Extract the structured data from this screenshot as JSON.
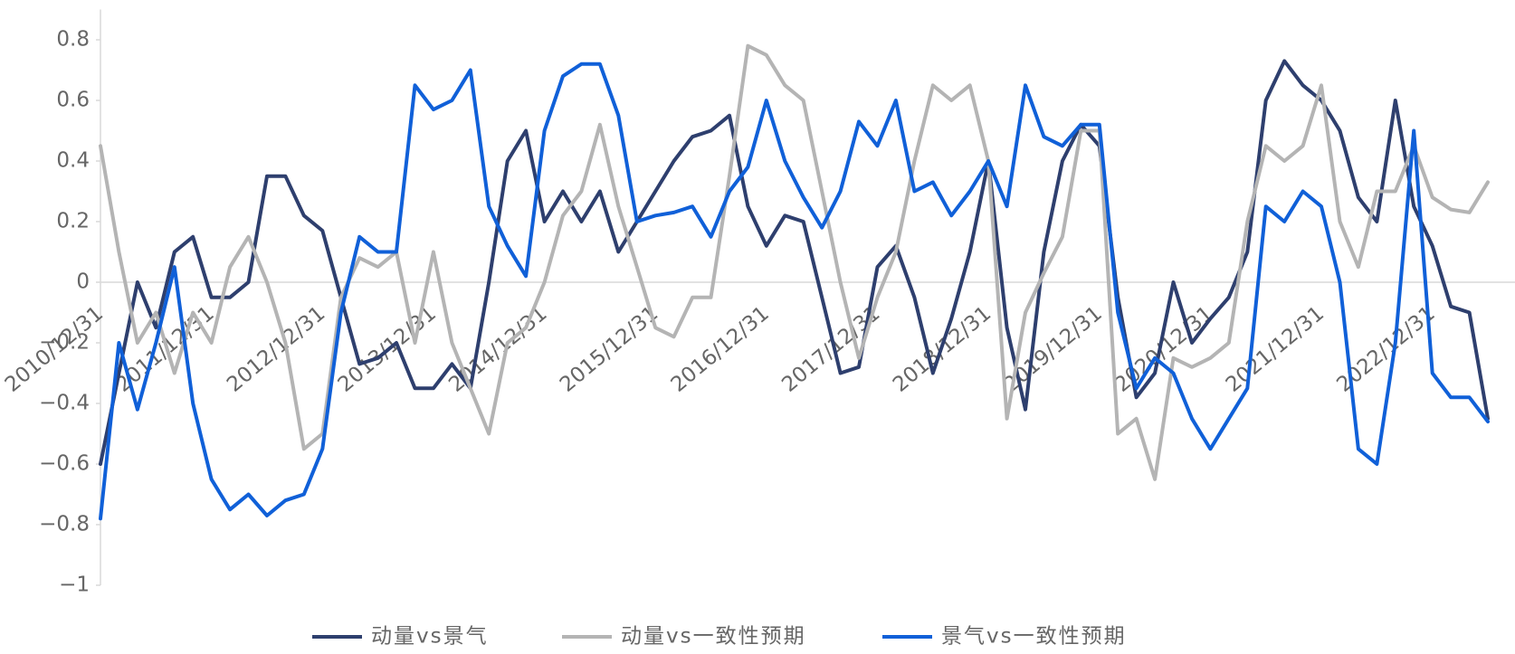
{
  "chart_data": {
    "type": "line",
    "categories": [
      "2010/12/31",
      null,
      null,
      null,
      null,
      null,
      "2011/12/31",
      null,
      null,
      null,
      null,
      null,
      "2012/12/31",
      null,
      null,
      null,
      null,
      null,
      "2013/12/31",
      null,
      null,
      null,
      null,
      null,
      "2014/12/31",
      null,
      null,
      null,
      null,
      null,
      "2015/12/31",
      null,
      null,
      null,
      null,
      null,
      "2016/12/31",
      null,
      null,
      null,
      null,
      null,
      "2017/12/31",
      null,
      null,
      null,
      null,
      null,
      "2018/12/31",
      null,
      null,
      null,
      null,
      null,
      "2019/12/31",
      null,
      null,
      null,
      null,
      null,
      "2020/12/31",
      null,
      null,
      null,
      null,
      null,
      "2021/12/31",
      null,
      null,
      null,
      null,
      null,
      "2022/12/31",
      null,
      null,
      null
    ],
    "series": [
      {
        "name": "动量vs景气",
        "color": "#2e3f6e",
        "values": [
          -0.6,
          -0.3,
          0.0,
          -0.15,
          0.1,
          0.15,
          -0.05,
          -0.05,
          0.0,
          0.35,
          0.35,
          0.22,
          0.17,
          -0.05,
          -0.27,
          -0.25,
          -0.2,
          -0.35,
          -0.35,
          -0.27,
          -0.35,
          0.0,
          0.4,
          0.5,
          0.2,
          0.3,
          0.2,
          0.3,
          0.1,
          0.2,
          0.3,
          0.4,
          0.48,
          0.5,
          0.55,
          0.25,
          0.12,
          0.22,
          0.2,
          -0.05,
          -0.3,
          -0.28,
          0.05,
          0.12,
          -0.05,
          -0.3,
          -0.12,
          0.1,
          0.4,
          -0.15,
          -0.42,
          0.1,
          0.4,
          0.52,
          0.45,
          -0.05,
          -0.38,
          -0.3,
          0.0,
          -0.2,
          -0.12,
          -0.05,
          0.1,
          0.6,
          0.73,
          0.65,
          0.6,
          0.5,
          0.28,
          0.2,
          0.6,
          0.25,
          0.12,
          -0.08,
          -0.1,
          -0.45
        ]
      },
      {
        "name": "动量vs一致性预期",
        "color": "#b4b4b4",
        "values": [
          0.45,
          0.1,
          -0.2,
          -0.1,
          -0.3,
          -0.1,
          -0.2,
          0.05,
          0.15,
          0.0,
          -0.2,
          -0.55,
          -0.5,
          -0.05,
          0.08,
          0.05,
          0.1,
          -0.2,
          0.1,
          -0.2,
          -0.35,
          -0.5,
          -0.2,
          -0.15,
          0.0,
          0.22,
          0.3,
          0.52,
          0.25,
          0.05,
          -0.15,
          -0.18,
          -0.05,
          -0.05,
          0.35,
          0.78,
          0.75,
          0.65,
          0.6,
          0.3,
          0.0,
          -0.25,
          -0.05,
          0.1,
          0.4,
          0.65,
          0.6,
          0.65,
          0.4,
          -0.45,
          -0.1,
          0.03,
          0.15,
          0.5,
          0.5,
          -0.5,
          -0.45,
          -0.65,
          -0.25,
          -0.28,
          -0.25,
          -0.2,
          0.2,
          0.45,
          0.4,
          0.45,
          0.65,
          0.2,
          0.05,
          0.3,
          0.3,
          0.45,
          0.28,
          0.24,
          0.23,
          0.33
        ]
      },
      {
        "name": "景气vs一致性预期",
        "color": "#1060d8",
        "values": [
          -0.78,
          -0.2,
          -0.42,
          -0.2,
          0.05,
          -0.4,
          -0.65,
          -0.75,
          -0.7,
          -0.77,
          -0.72,
          -0.7,
          -0.55,
          -0.1,
          0.15,
          0.1,
          0.1,
          0.65,
          0.57,
          0.6,
          0.7,
          0.25,
          0.12,
          0.02,
          0.5,
          0.68,
          0.72,
          0.72,
          0.55,
          0.2,
          0.22,
          0.23,
          0.25,
          0.15,
          0.3,
          0.38,
          0.6,
          0.4,
          0.28,
          0.18,
          0.3,
          0.53,
          0.45,
          0.6,
          0.3,
          0.33,
          0.22,
          0.3,
          0.4,
          0.25,
          0.65,
          0.48,
          0.45,
          0.52,
          0.52,
          -0.1,
          -0.35,
          -0.25,
          -0.3,
          -0.45,
          -0.55,
          -0.45,
          -0.35,
          0.25,
          0.2,
          0.3,
          0.25,
          0.0,
          -0.55,
          -0.6,
          -0.2,
          0.5,
          -0.3,
          -0.38,
          -0.38,
          -0.46
        ]
      }
    ],
    "ylim": [
      -1,
      0.9
    ],
    "yticks": [
      0.8,
      0.6,
      0.4,
      0.2,
      0,
      {
        "value": -0.2,
        "label": "−0.2"
      },
      {
        "value": -0.4,
        "label": "−0.4"
      },
      {
        "value": -0.6,
        "label": "−0.6"
      },
      {
        "value": -0.8,
        "label": "−0.8"
      },
      {
        "value": -1,
        "label": "−1"
      }
    ],
    "grid": false,
    "legend": "bottom"
  }
}
